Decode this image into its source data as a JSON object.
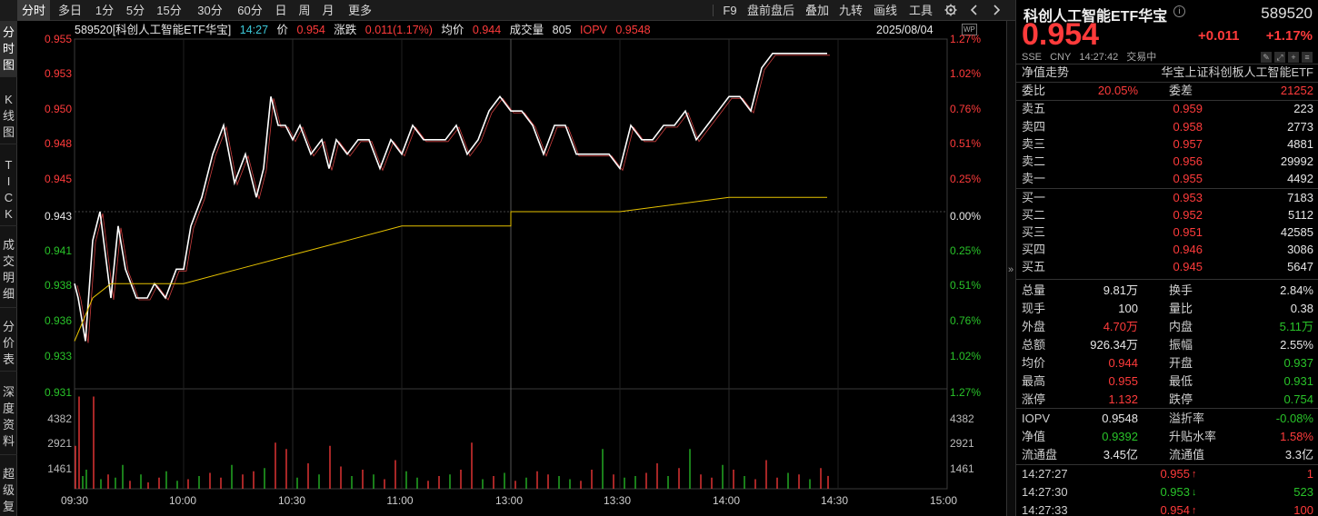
{
  "toolbar": {
    "tabs": [
      "分时",
      "多日",
      "1分",
      "5分",
      "15分",
      "30分",
      "60分",
      "日",
      "周",
      "月",
      "更多"
    ],
    "active_tab": "分时",
    "right_items": [
      "F9",
      "盘前盘后",
      "叠加",
      "九转",
      "画线",
      "工具"
    ]
  },
  "side_tabs": [
    "分时图",
    "K线图",
    "TICK",
    "成交明细",
    "分价表",
    "深度资料",
    "超级复"
  ],
  "chart": {
    "info": {
      "code_name": "589520[科创人工智能ETF华宝]",
      "time": "14:27",
      "price_label": "价",
      "price": "0.954",
      "chg_label": "涨跌",
      "chg": "0.011(1.17%)",
      "avg_label": "均价",
      "avg": "0.944",
      "vol_label": "成交量",
      "vol": "805",
      "iopv_label": "IOPV",
      "iopv": "0.9548",
      "date": "2025/08/04"
    },
    "y_left": [
      "0.955",
      "0.953",
      "0.950",
      "0.948",
      "0.945",
      "0.943",
      "0.941",
      "0.938",
      "0.936",
      "0.933",
      "0.931"
    ],
    "y_right": [
      "1.27%",
      "1.02%",
      "0.76%",
      "0.51%",
      "0.25%",
      "0.00%",
      "0.25%",
      "0.51%",
      "0.76%",
      "1.02%"
    ],
    "vol_left": [
      "4382",
      "2921",
      "1461"
    ],
    "vol_right": [
      "1.27%",
      "4382",
      "2921",
      "1461"
    ],
    "x_labels": [
      "09:30",
      "10:00",
      "10:30",
      "11:00",
      "13:00",
      "13:30",
      "14:00",
      "14:30",
      "15:00"
    ],
    "badge": "WP",
    "colors": {
      "up": "#ff3b3b",
      "down": "#29c329",
      "price_line": "#ffffff",
      "avg_line": "#e6c200",
      "iopv_line": "#ff4d4d"
    }
  },
  "chart_data": {
    "type": "line",
    "title": "589520[科创人工智能ETF华宝]",
    "prev_close": 0.943,
    "ylim": [
      0.931,
      0.955
    ],
    "x_start": "09:30",
    "x_end": "15:00",
    "series": [
      {
        "name": "价",
        "times": [
          "09:30",
          "09:31",
          "09:33",
          "09:35",
          "09:37",
          "09:40",
          "09:42",
          "09:44",
          "09:47",
          "09:50",
          "09:52",
          "09:55",
          "09:58",
          "10:00",
          "10:02",
          "10:05",
          "10:08",
          "10:11",
          "10:14",
          "10:17",
          "10:20",
          "10:22",
          "10:24",
          "10:26",
          "10:28",
          "10:30",
          "10:32",
          "10:35",
          "10:38",
          "10:40",
          "10:42",
          "10:45",
          "10:48",
          "10:51",
          "10:54",
          "10:57",
          "11:00",
          "11:03",
          "11:06",
          "11:09",
          "11:12",
          "11:15",
          "11:18",
          "11:21",
          "11:24",
          "11:27",
          "11:30",
          "13:00",
          "13:03",
          "13:06",
          "13:09",
          "13:12",
          "13:15",
          "13:18",
          "13:21",
          "13:24",
          "13:27",
          "13:30",
          "13:33",
          "13:36",
          "13:39",
          "13:42",
          "13:45",
          "13:48",
          "13:51",
          "13:54",
          "13:57",
          "14:00",
          "14:03",
          "14:06",
          "14:09",
          "14:12",
          "14:15",
          "14:18",
          "14:21",
          "14:24",
          "14:27"
        ],
        "values": [
          0.938,
          0.937,
          0.934,
          0.941,
          0.943,
          0.937,
          0.942,
          0.939,
          0.937,
          0.937,
          0.938,
          0.937,
          0.939,
          0.939,
          0.942,
          0.944,
          0.947,
          0.949,
          0.945,
          0.947,
          0.944,
          0.946,
          0.951,
          0.949,
          0.949,
          0.948,
          0.949,
          0.947,
          0.948,
          0.946,
          0.948,
          0.947,
          0.948,
          0.948,
          0.946,
          0.948,
          0.947,
          0.949,
          0.948,
          0.948,
          0.948,
          0.949,
          0.947,
          0.948,
          0.95,
          0.951,
          0.95,
          0.95,
          0.95,
          0.949,
          0.947,
          0.949,
          0.949,
          0.947,
          0.947,
          0.947,
          0.947,
          0.946,
          0.949,
          0.948,
          0.948,
          0.949,
          0.949,
          0.95,
          0.948,
          0.949,
          0.95,
          0.951,
          0.951,
          0.95,
          0.953,
          0.954,
          0.954,
          0.954,
          0.954,
          0.954,
          0.954
        ]
      },
      {
        "name": "均价",
        "times": [
          "09:30",
          "09:35",
          "09:40",
          "09:50",
          "10:00",
          "10:15",
          "10:30",
          "10:45",
          "11:00",
          "11:30",
          "13:00",
          "13:30",
          "14:00",
          "14:20",
          "14:27"
        ],
        "values": [
          0.934,
          0.937,
          0.938,
          0.938,
          0.938,
          0.939,
          0.94,
          0.941,
          0.942,
          0.942,
          0.943,
          0.943,
          0.944,
          0.944,
          0.944
        ]
      }
    ],
    "volume": {
      "times": [
        "09:30",
        "09:31",
        "09:32",
        "09:33",
        "09:35",
        "09:37",
        "09:39",
        "09:41",
        "09:43",
        "09:45",
        "09:48",
        "09:50",
        "09:53",
        "09:55",
        "09:58",
        "10:01",
        "10:04",
        "10:07",
        "10:10",
        "10:13",
        "10:16",
        "10:19",
        "10:22",
        "10:25",
        "10:28",
        "10:31",
        "10:34",
        "10:37",
        "10:40",
        "10:43",
        "10:46",
        "10:49",
        "10:52",
        "10:55",
        "10:58",
        "11:01",
        "11:04",
        "11:07",
        "11:10",
        "11:13",
        "11:16",
        "11:19",
        "11:22",
        "11:25",
        "11:28",
        "13:01",
        "13:04",
        "13:07",
        "13:10",
        "13:13",
        "13:16",
        "13:19",
        "13:22",
        "13:25",
        "13:28",
        "13:31",
        "13:34",
        "13:37",
        "13:40",
        "13:43",
        "13:46",
        "13:49",
        "13:52",
        "13:55",
        "13:58",
        "14:01",
        "14:04",
        "14:07",
        "14:10",
        "14:13",
        "14:16",
        "14:19",
        "14:22",
        "14:25",
        "14:27"
      ],
      "values": [
        2700,
        5800,
        800,
        1200,
        5800,
        600,
        900,
        700,
        1500,
        500,
        900,
        400,
        700,
        1100,
        500,
        600,
        800,
        1000,
        700,
        1500,
        900,
        1100,
        1300,
        2900,
        2500,
        700,
        1600,
        900,
        2700,
        1400,
        800,
        1200,
        900,
        600,
        1800,
        1100,
        700,
        500,
        800,
        900,
        1200,
        2900,
        600,
        800,
        1000,
        500,
        700,
        1100,
        900,
        800,
        600,
        500,
        1200,
        2500,
        900,
        700,
        800,
        1000,
        1600,
        800,
        1300,
        2500,
        900,
        700,
        1500,
        1200,
        800,
        600,
        1800,
        700,
        1000,
        900,
        600,
        1300,
        805
      ],
      "up": [
        true,
        true,
        false,
        false,
        true,
        false,
        true,
        false,
        false,
        true,
        false,
        true,
        true,
        false,
        false,
        true,
        false,
        true,
        true,
        false,
        true,
        true,
        false,
        true,
        true,
        false,
        true,
        false,
        true,
        true,
        false,
        true,
        false,
        true,
        true,
        false,
        false,
        true,
        true,
        false,
        true,
        true,
        false,
        true,
        false,
        true,
        false,
        true,
        true,
        false,
        false,
        true,
        true,
        false,
        true,
        false,
        false,
        true,
        true,
        false,
        true,
        false,
        true,
        true,
        false,
        true,
        false,
        true,
        true,
        true,
        false,
        true,
        false,
        true,
        true
      ]
    }
  },
  "panel": {
    "name": "科创人工智能ETF华宝",
    "info_icon": "i",
    "code": "589520",
    "price": "0.954",
    "change": "+0.011",
    "change_pct": "+1.17%",
    "meta": {
      "exchange": "SSE",
      "currency": "CNY",
      "time": "14:27:42",
      "status": "交易中"
    },
    "nav_row": {
      "label": "净值走势",
      "index": "华宝上证科创板人工智能ETF"
    },
    "weibi": {
      "label": "委比",
      "value": "20.05%",
      "label2": "委差",
      "value2": "21252"
    },
    "asks": [
      {
        "label": "卖五",
        "price": "0.959",
        "vol": "223"
      },
      {
        "label": "卖四",
        "price": "0.958",
        "vol": "2773"
      },
      {
        "label": "卖三",
        "price": "0.957",
        "vol": "4881"
      },
      {
        "label": "卖二",
        "price": "0.956",
        "vol": "29992"
      },
      {
        "label": "卖一",
        "price": "0.955",
        "vol": "4492"
      }
    ],
    "bids": [
      {
        "label": "买一",
        "price": "0.953",
        "vol": "7183"
      },
      {
        "label": "买二",
        "price": "0.952",
        "vol": "5112"
      },
      {
        "label": "买三",
        "price": "0.951",
        "vol": "42585"
      },
      {
        "label": "买四",
        "price": "0.946",
        "vol": "3086"
      },
      {
        "label": "买五",
        "price": "0.945",
        "vol": "5647"
      }
    ],
    "stats": [
      {
        "l1": "总量",
        "v1": "9.81万",
        "c1": "white",
        "l2": "换手",
        "v2": "2.84%",
        "c2": "white"
      },
      {
        "l1": "现手",
        "v1": "100",
        "c1": "white",
        "l2": "量比",
        "v2": "0.38",
        "c2": "white"
      },
      {
        "l1": "外盘",
        "v1": "4.70万",
        "c1": "red",
        "l2": "内盘",
        "v2": "5.11万",
        "c2": "green"
      },
      {
        "l1": "总额",
        "v1": "926.34万",
        "c1": "white",
        "l2": "振幅",
        "v2": "2.55%",
        "c2": "white"
      },
      {
        "l1": "均价",
        "v1": "0.944",
        "c1": "red",
        "l2": "开盘",
        "v2": "0.937",
        "c2": "green"
      },
      {
        "l1": "最高",
        "v1": "0.955",
        "c1": "red",
        "l2": "最低",
        "v2": "0.931",
        "c2": "green"
      },
      {
        "l1": "涨停",
        "v1": "1.132",
        "c1": "red",
        "l2": "跌停",
        "v2": "0.754",
        "c2": "green"
      }
    ],
    "etf": [
      {
        "l1": "IOPV",
        "v1": "0.9548",
        "c1": "white",
        "l2": "溢折率",
        "v2": "-0.08%",
        "c2": "green"
      },
      {
        "l1": "净值",
        "v1": "0.9392",
        "c1": "green",
        "l2": "升贴水率",
        "v2": "1.58%",
        "c2": "red"
      },
      {
        "l1": "流通盘",
        "v1": "3.45亿",
        "c1": "white",
        "l2": "流通值",
        "v2": "3.3亿",
        "c2": "white"
      }
    ],
    "ticks": [
      {
        "time": "14:27:27",
        "price": "0.955",
        "dir": "↑",
        "vol": "1",
        "c": "red"
      },
      {
        "time": "14:27:30",
        "price": "0.953",
        "dir": "↓",
        "vol": "523",
        "c": "green"
      },
      {
        "time": "14:27:33",
        "price": "0.954",
        "dir": "↑",
        "vol": "100",
        "c": "red"
      }
    ]
  }
}
